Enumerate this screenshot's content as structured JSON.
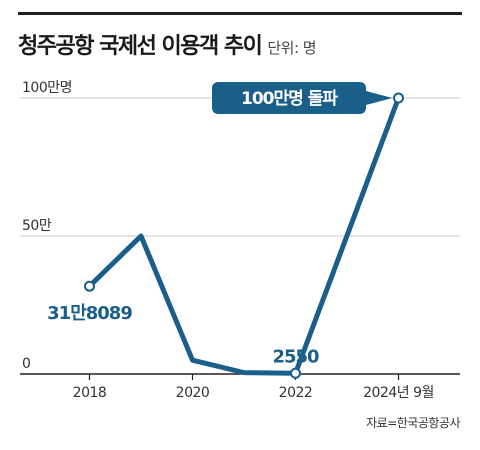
{
  "header": {
    "title": "청주공항 국제선 이용객 추이",
    "unit": "단위: 명"
  },
  "colors": {
    "line": "#1a5f8a",
    "callout_bg": "#1a5f8a",
    "grid": "#c8c8c8",
    "axis": "#222222"
  },
  "chart_data": {
    "type": "line",
    "title": "청주공항 국제선 이용객 추이",
    "unit": "단위: 명",
    "ylim": [
      0,
      1000000
    ],
    "yticks": [
      {
        "value": 0,
        "label": "0"
      },
      {
        "value": 500000,
        "label": "50만"
      },
      {
        "value": 1000000,
        "label": "100만명"
      }
    ],
    "xticks": [
      {
        "x": 2018,
        "label": "2018"
      },
      {
        "x": 2020,
        "label": "2020"
      },
      {
        "x": 2022,
        "label": "2022"
      },
      {
        "x": 2024,
        "label": "2024년 9월"
      }
    ],
    "series": [
      {
        "x": [
          2018,
          2019,
          2020,
          2021,
          2022,
          2024
        ],
        "values": [
          318089,
          500000,
          50000,
          5000,
          2550,
          1000000
        ]
      }
    ],
    "annotations": [
      {
        "x": 2018,
        "label": "31만8089"
      },
      {
        "x": 2022,
        "label": "2550"
      }
    ],
    "callout": {
      "text": "100만명 돌파"
    }
  },
  "footer": {
    "source": "자료=한국공항공사"
  }
}
